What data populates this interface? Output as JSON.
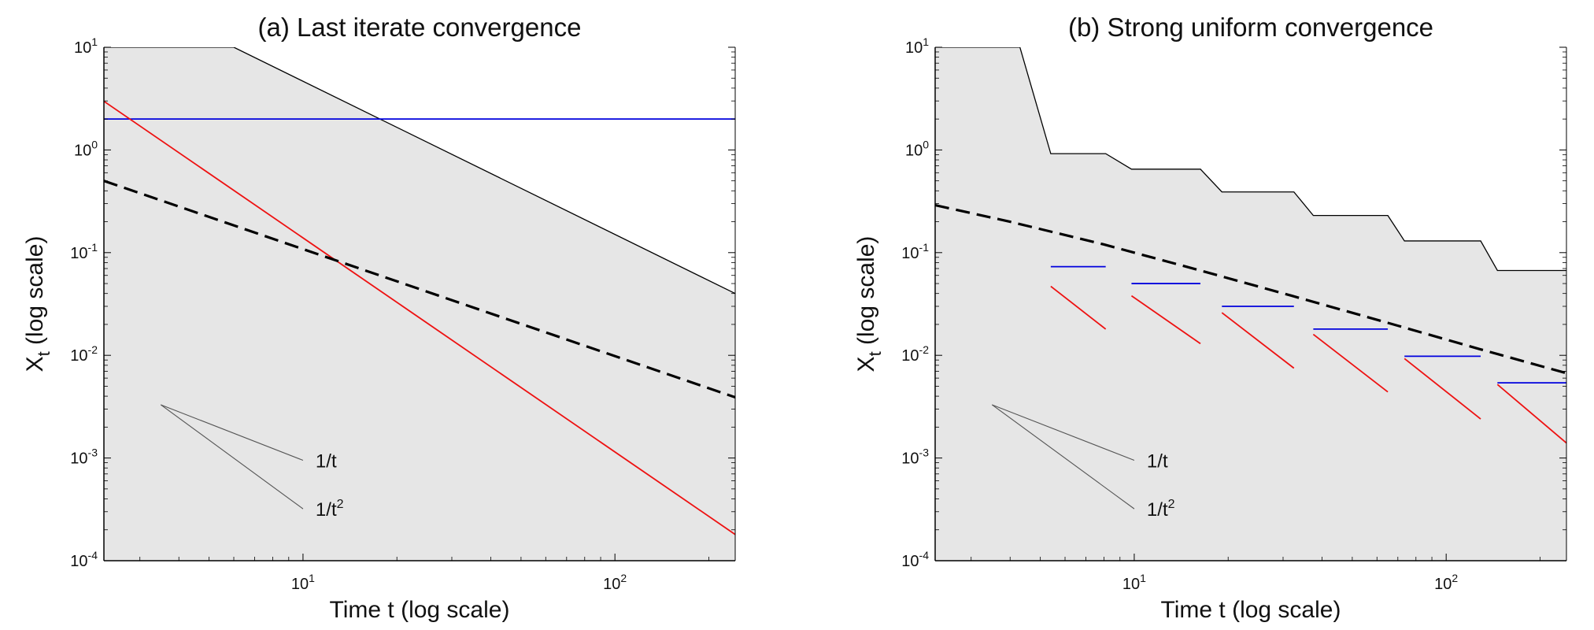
{
  "figure": {
    "panels": 2
  },
  "chart_data": [
    {
      "type": "line",
      "title": "(a) Last iterate convergence",
      "xlabel": "Time t (log scale)",
      "ylabel": "X_t (log scale)",
      "ylabel_main": "X",
      "ylabel_sub": "t",
      "ylabel_rest": " (log scale)",
      "xscale": "log",
      "yscale": "log",
      "xlim": [
        2.3,
        243
      ],
      "ylim": [
        0.0001,
        10
      ],
      "xticks": [
        {
          "value": 10,
          "base": "10",
          "exp": "1"
        },
        {
          "value": 100,
          "base": "10",
          "exp": "2"
        }
      ],
      "yticks": [
        {
          "value": 10,
          "base": "10",
          "exp": "1"
        },
        {
          "value": 1,
          "base": "10",
          "exp": "0"
        },
        {
          "value": 0.1,
          "base": "10",
          "exp": "-1"
        },
        {
          "value": 0.01,
          "base": "10",
          "exp": "-2"
        },
        {
          "value": 0.001,
          "base": "10",
          "exp": "-3"
        },
        {
          "value": 0.0001,
          "base": "10",
          "exp": "-4"
        }
      ],
      "shaded_region": {
        "color": "#e6e6e6",
        "upper_boundary": {
          "color": "#000000",
          "x": [
            2.3,
            6.0,
            243
          ],
          "y": [
            10,
            10,
            0.04
          ]
        }
      },
      "series": [
        {
          "name": "blue",
          "color": "#0000dd",
          "style": "solid",
          "x": [
            2.3,
            243
          ],
          "y": [
            2.0,
            2.0
          ]
        },
        {
          "name": "red",
          "color": "#ee1111",
          "style": "solid",
          "x": [
            2.3,
            243
          ],
          "y": [
            2.98,
            0.00018
          ]
        },
        {
          "name": "dashed",
          "color": "#000000",
          "style": "dashed",
          "x": [
            2.3,
            243
          ],
          "y": [
            0.5,
            0.0039
          ]
        }
      ],
      "slope_reference": {
        "color": "#555555",
        "lines": [
          {
            "label": "1/t",
            "label_main": "1/t",
            "label_sup": "",
            "x": [
              3.5,
              10.0
            ],
            "y": [
              0.0033,
              0.00095
            ]
          },
          {
            "label": "1/t^2",
            "label_main": "1/t",
            "label_sup": "2",
            "x": [
              3.5,
              10.0
            ],
            "y": [
              0.0033,
              0.00032
            ]
          }
        ]
      }
    },
    {
      "type": "line",
      "title": "(b) Strong uniform convergence",
      "xlabel": "Time t (log scale)",
      "ylabel": "X_t (log scale)",
      "ylabel_main": "X",
      "ylabel_sub": "t",
      "ylabel_rest": " (log scale)",
      "xscale": "log",
      "yscale": "log",
      "xlim": [
        2.3,
        243
      ],
      "ylim": [
        0.0001,
        10
      ],
      "xticks": [
        {
          "value": 10,
          "base": "10",
          "exp": "1"
        },
        {
          "value": 100,
          "base": "10",
          "exp": "2"
        }
      ],
      "yticks": [
        {
          "value": 10,
          "base": "10",
          "exp": "1"
        },
        {
          "value": 1,
          "base": "10",
          "exp": "0"
        },
        {
          "value": 0.1,
          "base": "10",
          "exp": "-1"
        },
        {
          "value": 0.01,
          "base": "10",
          "exp": "-2"
        },
        {
          "value": 0.001,
          "base": "10",
          "exp": "-3"
        },
        {
          "value": 0.0001,
          "base": "10",
          "exp": "-4"
        }
      ],
      "shaded_region": {
        "color": "#e6e6e6",
        "upper_boundary": {
          "color": "#000000",
          "x": [
            2.3,
            4.3,
            5.4,
            8.1,
            9.8,
            16.3,
            19.1,
            32.5,
            37.5,
            65,
            73.5,
            129,
            146,
            243
          ],
          "y": [
            10,
            10,
            0.92,
            0.92,
            0.65,
            0.65,
            0.39,
            0.39,
            0.23,
            0.23,
            0.13,
            0.13,
            0.067,
            0.067
          ]
        }
      },
      "series": [
        {
          "name": "dashed",
          "color": "#000000",
          "style": "dashed",
          "x": [
            2.3,
            4,
            8,
            16,
            32,
            64,
            128,
            243
          ],
          "y": [
            0.29,
            0.2,
            0.12,
            0.068,
            0.038,
            0.021,
            0.0115,
            0.0067
          ]
        },
        {
          "name": "blue-segments",
          "color": "#0000dd",
          "style": "solid",
          "segments": [
            {
              "x": [
                5.4,
                8.1
              ],
              "y": [
                0.073,
                0.073
              ]
            },
            {
              "x": [
                9.8,
                16.3
              ],
              "y": [
                0.05,
                0.05
              ]
            },
            {
              "x": [
                19.1,
                32.5
              ],
              "y": [
                0.03,
                0.03
              ]
            },
            {
              "x": [
                37.5,
                65
              ],
              "y": [
                0.018,
                0.018
              ]
            },
            {
              "x": [
                73.5,
                129
              ],
              "y": [
                0.0098,
                0.0098
              ]
            },
            {
              "x": [
                146,
                243
              ],
              "y": [
                0.0054,
                0.0054
              ]
            }
          ]
        },
        {
          "name": "red-segments",
          "color": "#ee1111",
          "style": "solid",
          "segments": [
            {
              "x": [
                5.4,
                8.1
              ],
              "y": [
                0.047,
                0.018
              ]
            },
            {
              "x": [
                9.8,
                16.3
              ],
              "y": [
                0.038,
                0.013
              ]
            },
            {
              "x": [
                19.1,
                32.5
              ],
              "y": [
                0.026,
                0.0075
              ]
            },
            {
              "x": [
                37.5,
                65
              ],
              "y": [
                0.016,
                0.0044
              ]
            },
            {
              "x": [
                73.5,
                129
              ],
              "y": [
                0.0093,
                0.0024
              ]
            },
            {
              "x": [
                146,
                243
              ],
              "y": [
                0.0052,
                0.0014
              ]
            }
          ]
        }
      ],
      "slope_reference": {
        "color": "#555555",
        "lines": [
          {
            "label": "1/t",
            "label_main": "1/t",
            "label_sup": "",
            "x": [
              3.5,
              10.0
            ],
            "y": [
              0.0033,
              0.00095
            ]
          },
          {
            "label": "1/t^2",
            "label_main": "1/t",
            "label_sup": "2",
            "x": [
              3.5,
              10.0
            ],
            "y": [
              0.0033,
              0.00032
            ]
          }
        ]
      }
    }
  ]
}
